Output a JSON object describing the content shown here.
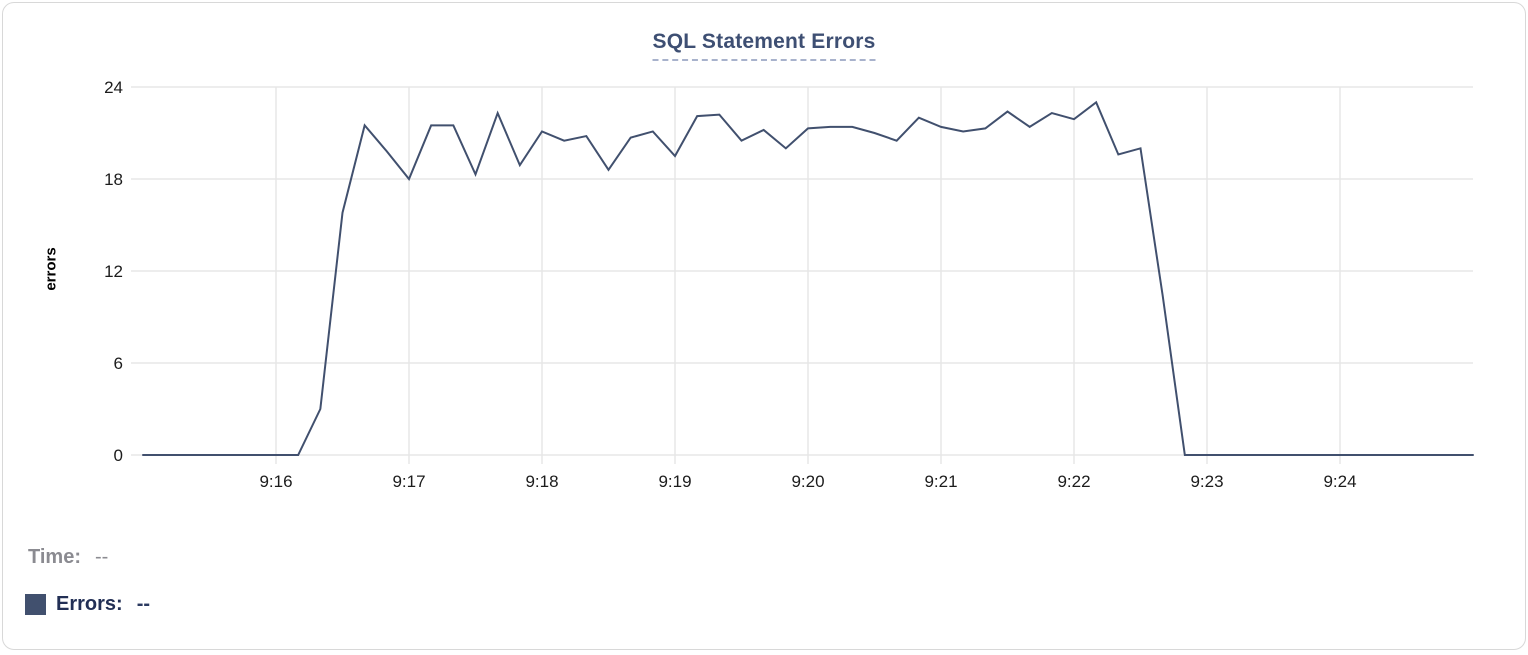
{
  "card": {
    "background": "#ffffff",
    "border_color": "#d8d8d8"
  },
  "chart_data": {
    "type": "line",
    "title": "SQL Statement Errors",
    "xlabel": "",
    "ylabel": "errors",
    "ylim": [
      0,
      24
    ],
    "yticks": [
      0,
      6,
      12,
      18,
      24
    ],
    "xlim": [
      "9:15:00",
      "9:25:00"
    ],
    "xticks": [
      "9:16",
      "9:17",
      "9:18",
      "9:19",
      "9:20",
      "9:21",
      "9:22",
      "9:23",
      "9:24"
    ],
    "grid": "on",
    "legend_position": "bottom-left",
    "series_name": "Errors",
    "line_color": "#41506e",
    "x": [
      "9:15:00",
      "9:15:10",
      "9:15:20",
      "9:15:30",
      "9:15:40",
      "9:15:50",
      "9:16:00",
      "9:16:10",
      "9:16:20",
      "9:16:30",
      "9:16:40",
      "9:16:50",
      "9:17:00",
      "9:17:10",
      "9:17:20",
      "9:17:30",
      "9:17:40",
      "9:17:50",
      "9:18:00",
      "9:18:10",
      "9:18:20",
      "9:18:30",
      "9:18:40",
      "9:18:50",
      "9:19:00",
      "9:19:10",
      "9:19:20",
      "9:19:30",
      "9:19:40",
      "9:19:50",
      "9:20:00",
      "9:20:10",
      "9:20:20",
      "9:20:30",
      "9:20:40",
      "9:20:50",
      "9:21:00",
      "9:21:10",
      "9:21:20",
      "9:21:30",
      "9:21:40",
      "9:21:50",
      "9:22:00",
      "9:22:10",
      "9:22:20",
      "9:22:30",
      "9:22:40",
      "9:22:50",
      "9:23:00",
      "9:23:10",
      "9:23:20",
      "9:23:30",
      "9:23:40",
      "9:23:50",
      "9:24:00",
      "9:24:10",
      "9:24:20",
      "9:24:30",
      "9:24:40",
      "9:24:50",
      "9:25:00"
    ],
    "y": [
      0,
      0,
      0,
      0,
      0,
      0,
      0,
      0,
      3,
      15.8,
      21.5,
      19.8,
      18,
      21.5,
      21.5,
      18.3,
      22.3,
      18.9,
      21.1,
      20.5,
      20.8,
      18.6,
      20.7,
      21.1,
      19.5,
      22.1,
      22.2,
      20.5,
      21.2,
      20,
      21.3,
      21.4,
      21.4,
      21,
      20.5,
      22,
      21.4,
      21.1,
      21.3,
      22.4,
      21.4,
      22.3,
      21.9,
      23,
      19.6,
      20,
      10.4,
      0,
      0,
      0,
      0,
      0,
      0,
      0,
      0,
      0,
      0,
      0,
      0,
      0,
      0
    ]
  },
  "legend": {
    "time_label": "Time:",
    "time_value": "--",
    "errors_label": "Errors:",
    "errors_value": "--",
    "time_color": "#8b8b91",
    "errors_color": "#222f55",
    "swatch_color": "#41506e"
  }
}
